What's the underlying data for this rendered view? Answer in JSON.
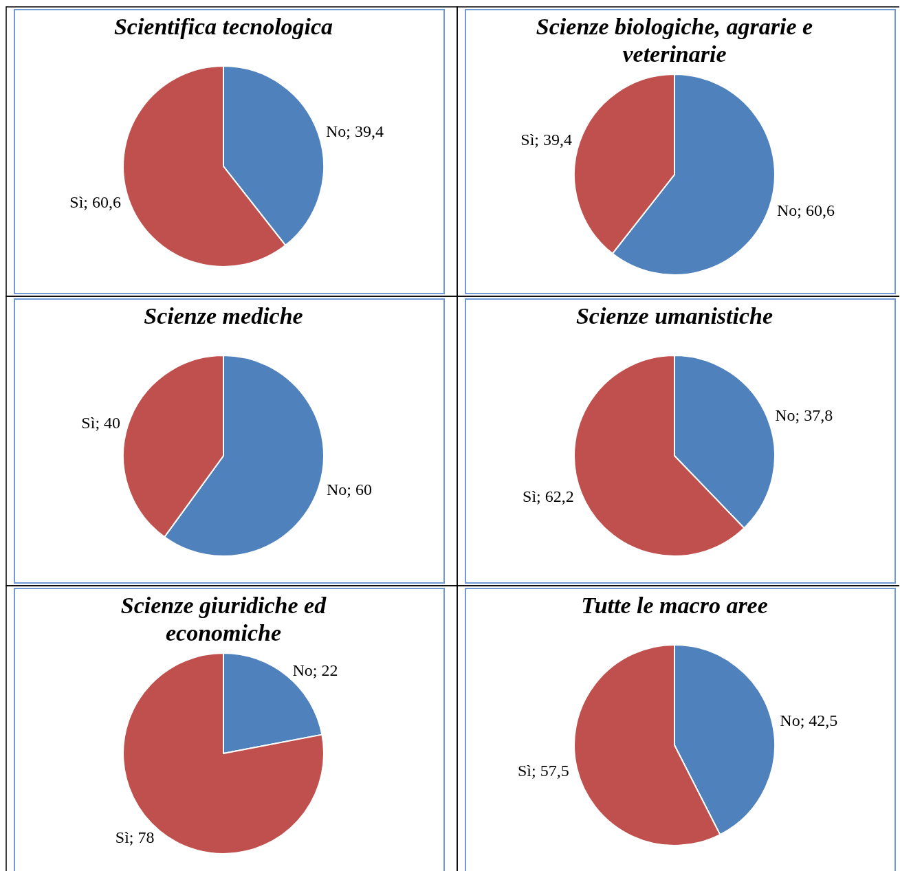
{
  "chart_data": [
    {
      "type": "pie",
      "title": "Scientifica tecnologica",
      "categories": [
        "No",
        "Sì"
      ],
      "values": [
        39.4,
        60.6
      ],
      "value_labels": [
        "39,4",
        "60,6"
      ],
      "colors": [
        "#4f81bd",
        "#c0504d"
      ]
    },
    {
      "type": "pie",
      "title": "Scienze biologiche, agrarie e veterinarie",
      "categories": [
        "No",
        "Sì"
      ],
      "values": [
        60.6,
        39.4
      ],
      "value_labels": [
        "60,6",
        "39,4"
      ],
      "colors": [
        "#4f81bd",
        "#c0504d"
      ]
    },
    {
      "type": "pie",
      "title": "Scienze mediche",
      "categories": [
        "No",
        "Sì"
      ],
      "values": [
        60,
        40
      ],
      "value_labels": [
        "60",
        "40"
      ],
      "colors": [
        "#4f81bd",
        "#c0504d"
      ]
    },
    {
      "type": "pie",
      "title": "Scienze umanistiche",
      "categories": [
        "No",
        "Sì"
      ],
      "values": [
        37.8,
        62.2
      ],
      "value_labels": [
        "37,8",
        "62,2"
      ],
      "colors": [
        "#4f81bd",
        "#c0504d"
      ]
    },
    {
      "type": "pie",
      "title": "Scienze giuridiche ed economiche",
      "categories": [
        "No",
        "Sì"
      ],
      "values": [
        22,
        78
      ],
      "value_labels": [
        "22",
        "78"
      ],
      "colors": [
        "#4f81bd",
        "#c0504d"
      ]
    },
    {
      "type": "pie",
      "title": "Tutte le macro aree",
      "categories": [
        "No",
        "Sì"
      ],
      "values": [
        42.5,
        57.5
      ],
      "value_labels": [
        "42,5",
        "57,5"
      ],
      "colors": [
        "#4f81bd",
        "#c0504d"
      ]
    }
  ]
}
